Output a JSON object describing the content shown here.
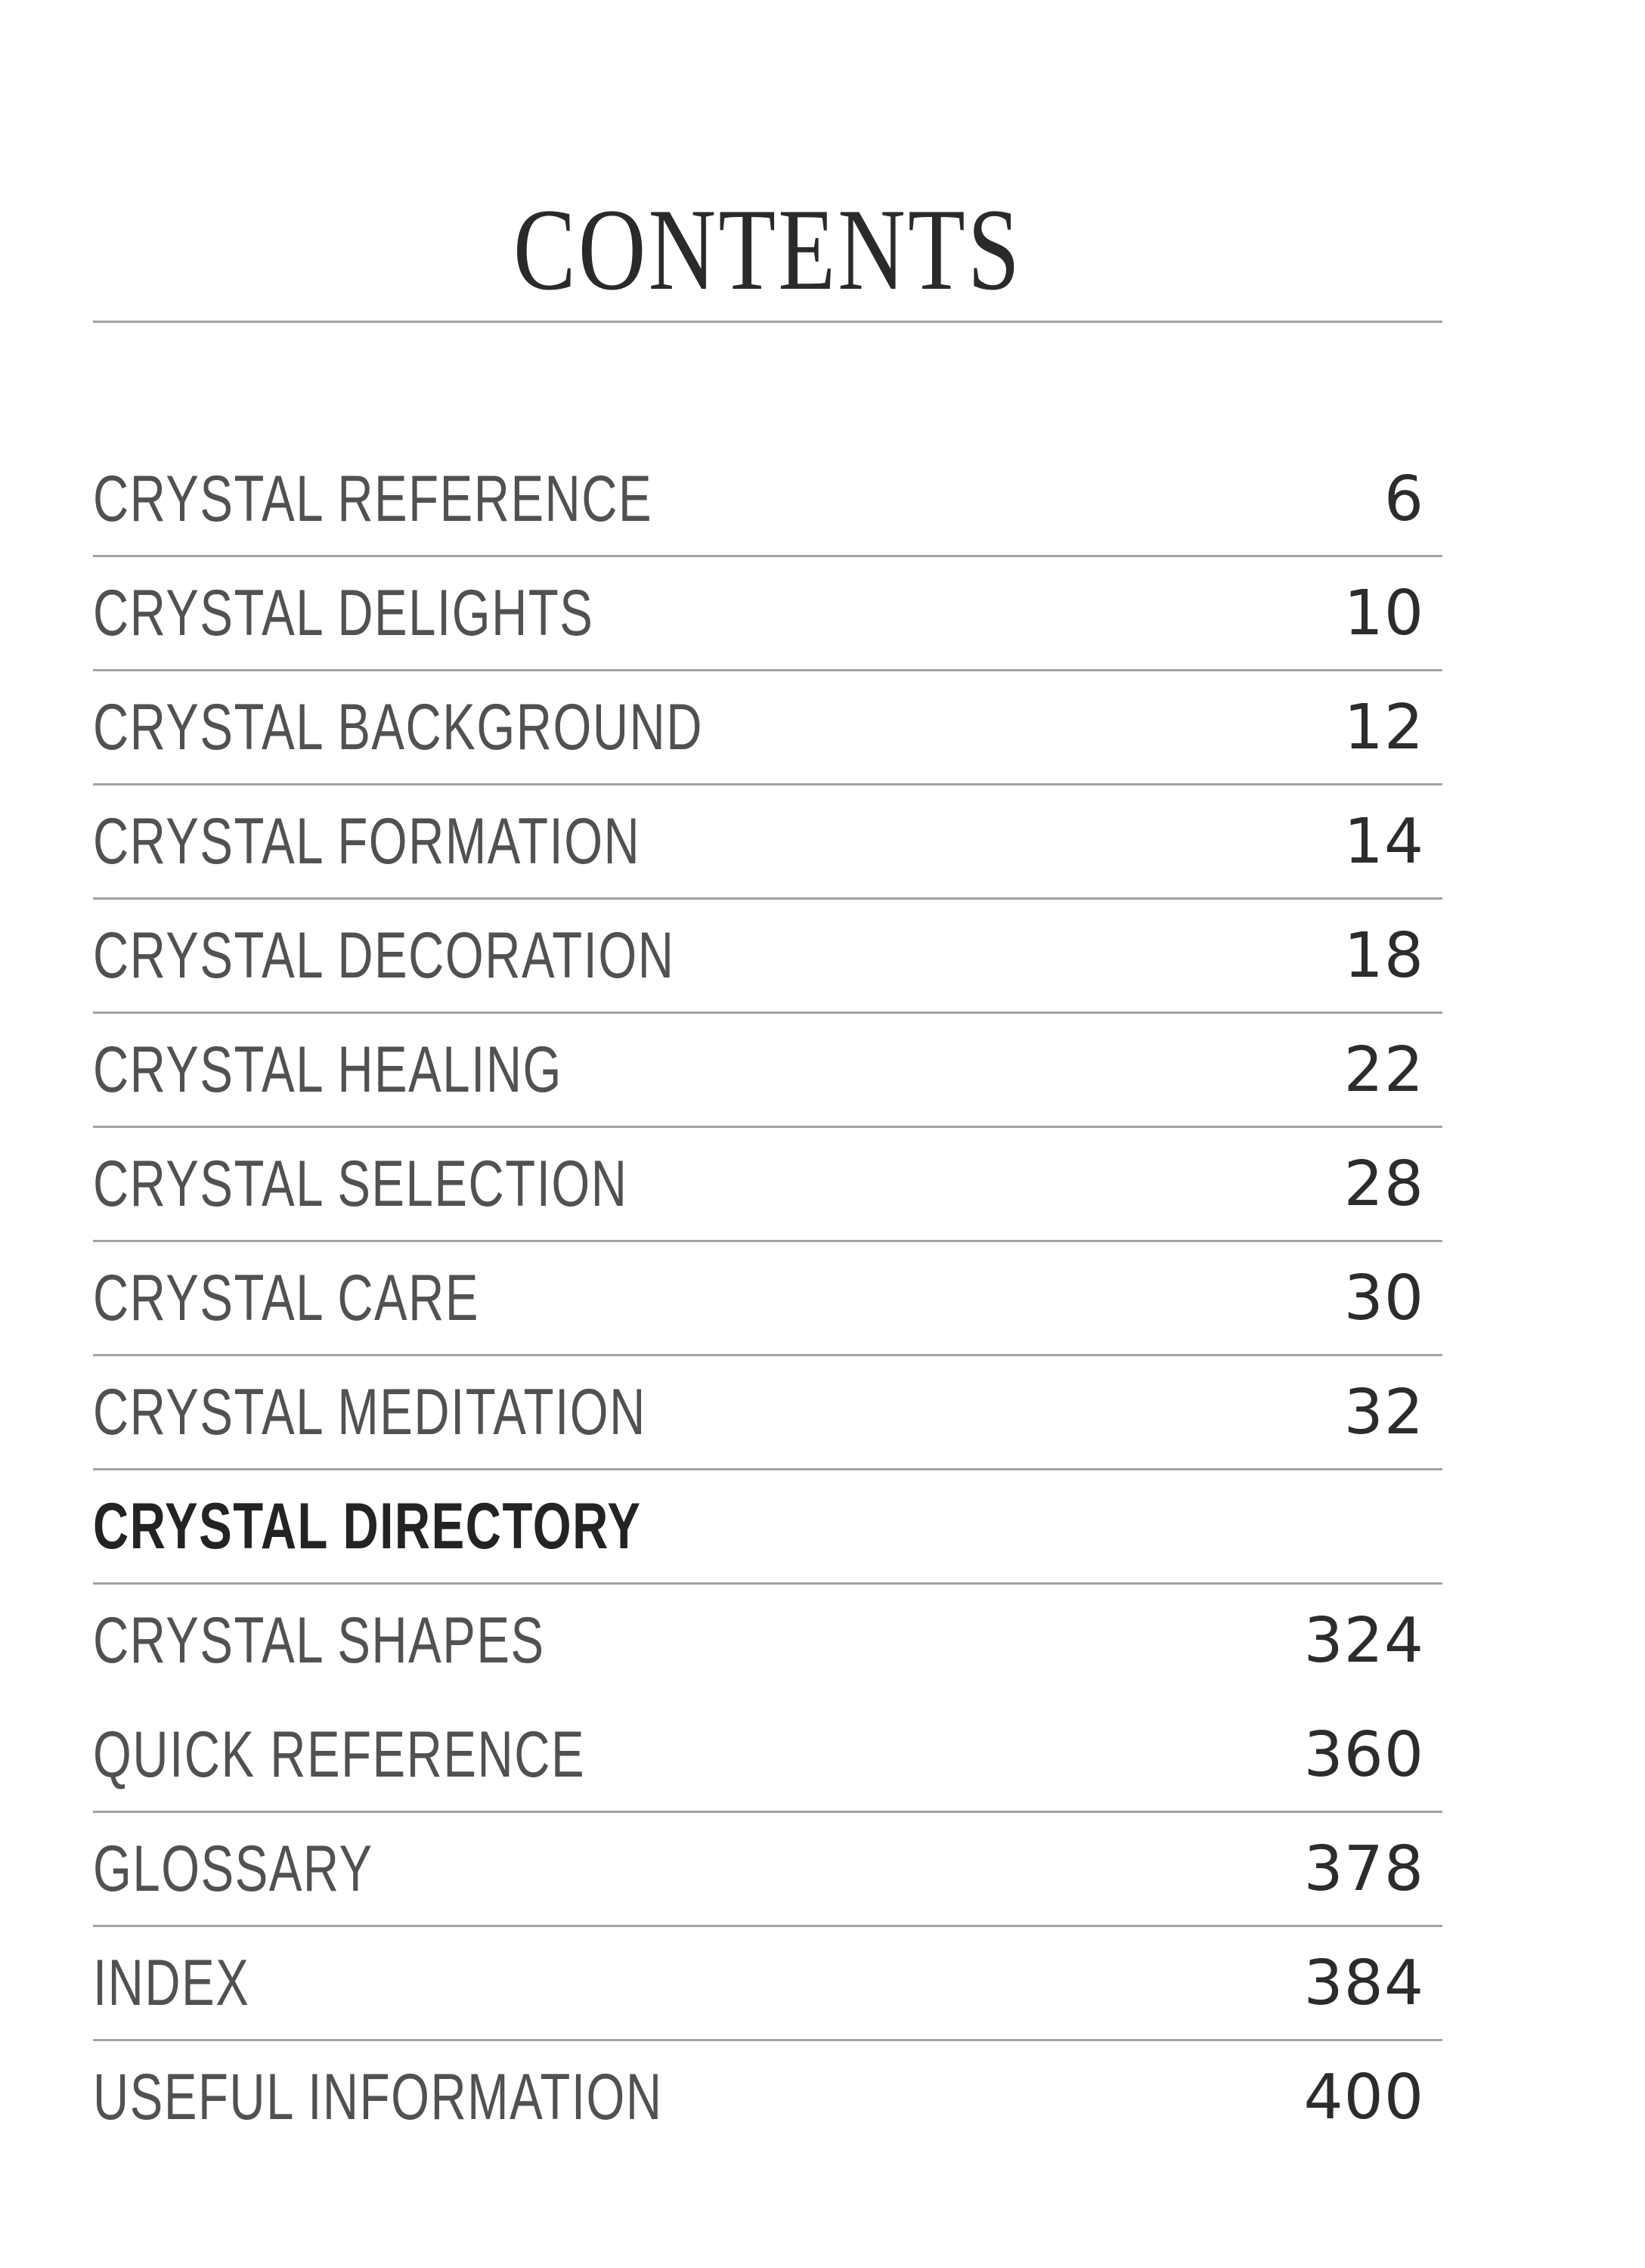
{
  "document": {
    "title": "CONTENTS",
    "entries": [
      {
        "label": "CRYSTAL REFERENCE",
        "page": "6",
        "bold": false,
        "divider_after": true
      },
      {
        "label": "CRYSTAL DELIGHTS",
        "page": "10",
        "bold": false,
        "divider_after": true
      },
      {
        "label": "CRYSTAL BACKGROUND",
        "page": "12",
        "bold": false,
        "divider_after": true
      },
      {
        "label": "CRYSTAL FORMATION",
        "page": "14",
        "bold": false,
        "divider_after": true
      },
      {
        "label": "CRYSTAL DECORATION",
        "page": "18",
        "bold": false,
        "divider_after": true
      },
      {
        "label": "CRYSTAL HEALING",
        "page": "22",
        "bold": false,
        "divider_after": true
      },
      {
        "label": "CRYSTAL SELECTION",
        "page": "28",
        "bold": false,
        "divider_after": true
      },
      {
        "label": "CRYSTAL CARE",
        "page": "30",
        "bold": false,
        "divider_after": true
      },
      {
        "label": "CRYSTAL MEDITATION",
        "page": "32",
        "bold": false,
        "divider_after": true
      },
      {
        "label": "CRYSTAL DIRECTORY",
        "page": "",
        "bold": true,
        "divider_after": true
      },
      {
        "label": "CRYSTAL SHAPES",
        "page": "324",
        "bold": false,
        "divider_after": false
      },
      {
        "label": "QUICK REFERENCE",
        "page": "360",
        "bold": false,
        "divider_after": true
      },
      {
        "label": "GLOSSARY",
        "page": "378",
        "bold": false,
        "divider_after": true
      },
      {
        "label": "INDEX",
        "page": "384",
        "bold": false,
        "divider_after": true
      },
      {
        "label": "USEFUL INFORMATION",
        "page": "400",
        "bold": false,
        "divider_after": false
      }
    ],
    "colors": {
      "ink": "#2a2a2a",
      "label_ink": "#515151",
      "number_ink": "#2c2c2c",
      "rule": "#a3a3a3",
      "background": "#ffffff"
    }
  }
}
